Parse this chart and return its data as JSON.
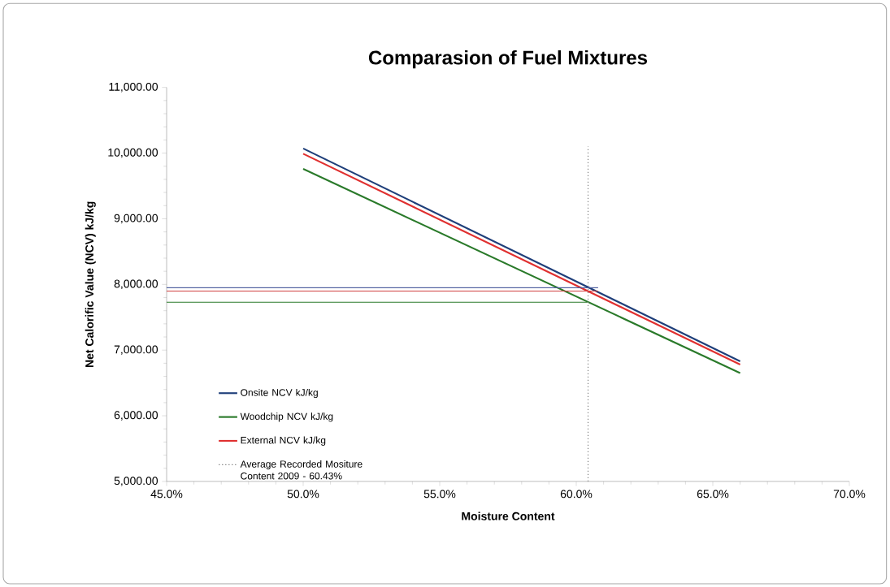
{
  "chart_data": {
    "type": "line",
    "title": "Comparasion of Fuel Mixtures",
    "xlabel": "Moisture Content",
    "ylabel": "Net Calorific Value (NCV) kJ/kg",
    "xlim": [
      45,
      70
    ],
    "ylim": [
      5000,
      11000
    ],
    "xticks": [
      {
        "value": 45,
        "label": "45.0%"
      },
      {
        "value": 50,
        "label": "50.0%"
      },
      {
        "value": 55,
        "label": "55.0%"
      },
      {
        "value": 60,
        "label": "60.0%"
      },
      {
        "value": 65,
        "label": "65.0%"
      },
      {
        "value": 70,
        "label": "70.0%"
      }
    ],
    "yticks": [
      {
        "value": 5000,
        "label": "5,000.00"
      },
      {
        "value": 6000,
        "label": "6,000.00"
      },
      {
        "value": 7000,
        "label": "7,000.00"
      },
      {
        "value": 8000,
        "label": "8,000.00"
      },
      {
        "value": 9000,
        "label": "9,000.00"
      },
      {
        "value": 10000,
        "label": "10,000.00"
      },
      {
        "value": 11000,
        "label": "11,000.00"
      }
    ],
    "series": [
      {
        "name": "Onsite NCV kJ/kg",
        "color": "#1f3f7a",
        "x": [
          50,
          66
        ],
        "values": [
          10070,
          6830
        ]
      },
      {
        "name": "Woodchip NCV kJ/kg",
        "color": "#2a7a2a",
        "x": [
          50,
          66
        ],
        "values": [
          9760,
          6650
        ]
      },
      {
        "name": "External NCV kJ/kg",
        "color": "#e03030",
        "x": [
          50,
          66
        ],
        "values": [
          9990,
          6780
        ]
      },
      {
        "color": "#5060a0",
        "x": [
          45,
          60.8
        ],
        "values": [
          7950,
          7950
        ]
      },
      {
        "color": "#d04040",
        "x": [
          45,
          60.8
        ],
        "values": [
          7900,
          7900
        ]
      },
      {
        "color": "#2a7a2a",
        "x": [
          45,
          60.4
        ],
        "values": [
          7730,
          7730
        ]
      },
      {
        "name": "Average Recorded Mositure Content 2009 - 60.43%",
        "color": "#808080",
        "line_style": "dotted",
        "x": [
          60.43,
          60.43
        ],
        "values": [
          5000,
          10100
        ]
      }
    ],
    "legend": "bottom left",
    "grid": false
  }
}
